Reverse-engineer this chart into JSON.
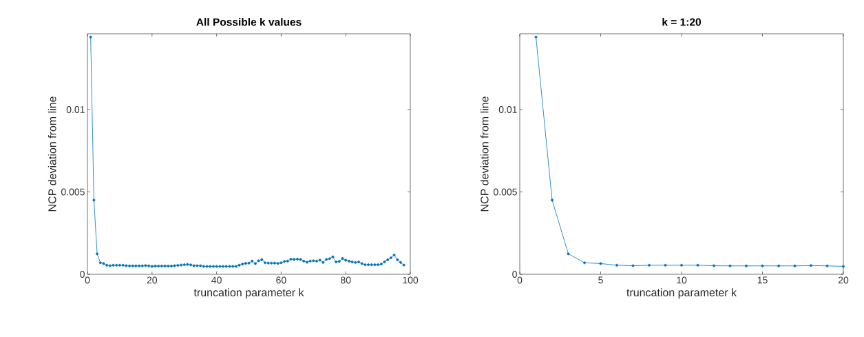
{
  "chart_data": [
    {
      "type": "line",
      "title": "All Possible k values",
      "xlabel": "truncation parameter k",
      "ylabel": "NCP deviation from line",
      "marker": "circle",
      "line_style": "solid",
      "color": "#0072bd",
      "x": [
        1,
        2,
        3,
        4,
        5,
        6,
        7,
        8,
        9,
        10,
        11,
        12,
        13,
        14,
        15,
        16,
        17,
        18,
        19,
        20,
        21,
        22,
        23,
        24,
        25,
        26,
        27,
        28,
        29,
        30,
        31,
        32,
        33,
        34,
        35,
        36,
        37,
        38,
        39,
        40,
        41,
        42,
        43,
        44,
        45,
        46,
        47,
        48,
        49,
        50,
        51,
        52,
        53,
        54,
        55,
        56,
        57,
        58,
        59,
        60,
        61,
        62,
        63,
        64,
        65,
        66,
        67,
        68,
        69,
        70,
        71,
        72,
        73,
        74,
        75,
        76,
        77,
        78,
        79,
        80,
        81,
        82,
        83,
        84,
        85,
        86,
        87,
        88,
        89,
        90,
        91,
        92,
        93,
        94,
        95,
        96,
        97,
        98
      ],
      "values": [
        0.0144,
        0.0045,
        0.00124,
        0.0007,
        0.00065,
        0.00055,
        0.00052,
        0.00055,
        0.00055,
        0.00055,
        0.00055,
        0.00052,
        0.00051,
        0.00051,
        0.00051,
        0.00051,
        0.00051,
        0.00053,
        0.00051,
        0.00048,
        0.0005,
        0.0005,
        0.0005,
        0.0005,
        0.0005,
        0.0005,
        0.00052,
        0.00054,
        0.00056,
        0.00058,
        0.0006,
        0.00057,
        0.00052,
        0.00052,
        0.00052,
        0.00048,
        0.00048,
        0.00048,
        0.00048,
        0.00048,
        0.00048,
        0.00048,
        0.00048,
        0.00048,
        0.00048,
        0.00048,
        0.00055,
        0.00062,
        0.00066,
        0.00068,
        0.0008,
        0.00065,
        0.00082,
        0.00089,
        0.0007,
        0.00068,
        0.00068,
        0.00068,
        0.00066,
        0.0007,
        0.00078,
        0.0008,
        0.00092,
        0.0009,
        0.00092,
        0.0009,
        0.0008,
        0.00073,
        0.0008,
        0.00082,
        0.0008,
        0.00086,
        0.00072,
        0.0009,
        0.00095,
        0.00106,
        0.00075,
        0.00078,
        0.00096,
        0.00085,
        0.0008,
        0.00075,
        0.00072,
        0.00075,
        0.00065,
        0.00058,
        0.00058,
        0.00058,
        0.00058,
        0.00058,
        0.00062,
        0.00075,
        0.00088,
        0.001,
        0.00117,
        0.00088,
        0.00072,
        0.00056
      ],
      "xlim": [
        0,
        100
      ],
      "ylim": [
        0,
        0.0146
      ],
      "xticks": [
        0,
        20,
        40,
        60,
        80,
        100
      ],
      "yticks": [
        0,
        0.005,
        0.01
      ]
    },
    {
      "type": "line",
      "title": "k = 1:20",
      "xlabel": "truncation parameter k",
      "ylabel": "NCP deviation from line",
      "marker": "circle",
      "line_style": "solid",
      "color": "#0072bd",
      "x": [
        1,
        2,
        3,
        4,
        5,
        6,
        7,
        8,
        9,
        10,
        11,
        12,
        13,
        14,
        15,
        16,
        17,
        18,
        19,
        20
      ],
      "values": [
        0.0144,
        0.0045,
        0.00124,
        0.0007,
        0.00065,
        0.00055,
        0.00052,
        0.00055,
        0.00055,
        0.00055,
        0.00055,
        0.00052,
        0.00051,
        0.00051,
        0.00051,
        0.00051,
        0.00051,
        0.00053,
        0.00051,
        0.00048
      ],
      "xlim": [
        0,
        20
      ],
      "ylim": [
        0,
        0.0146
      ],
      "xticks": [
        0,
        5,
        10,
        15,
        20
      ],
      "yticks": [
        0,
        0.005,
        0.01
      ]
    }
  ]
}
